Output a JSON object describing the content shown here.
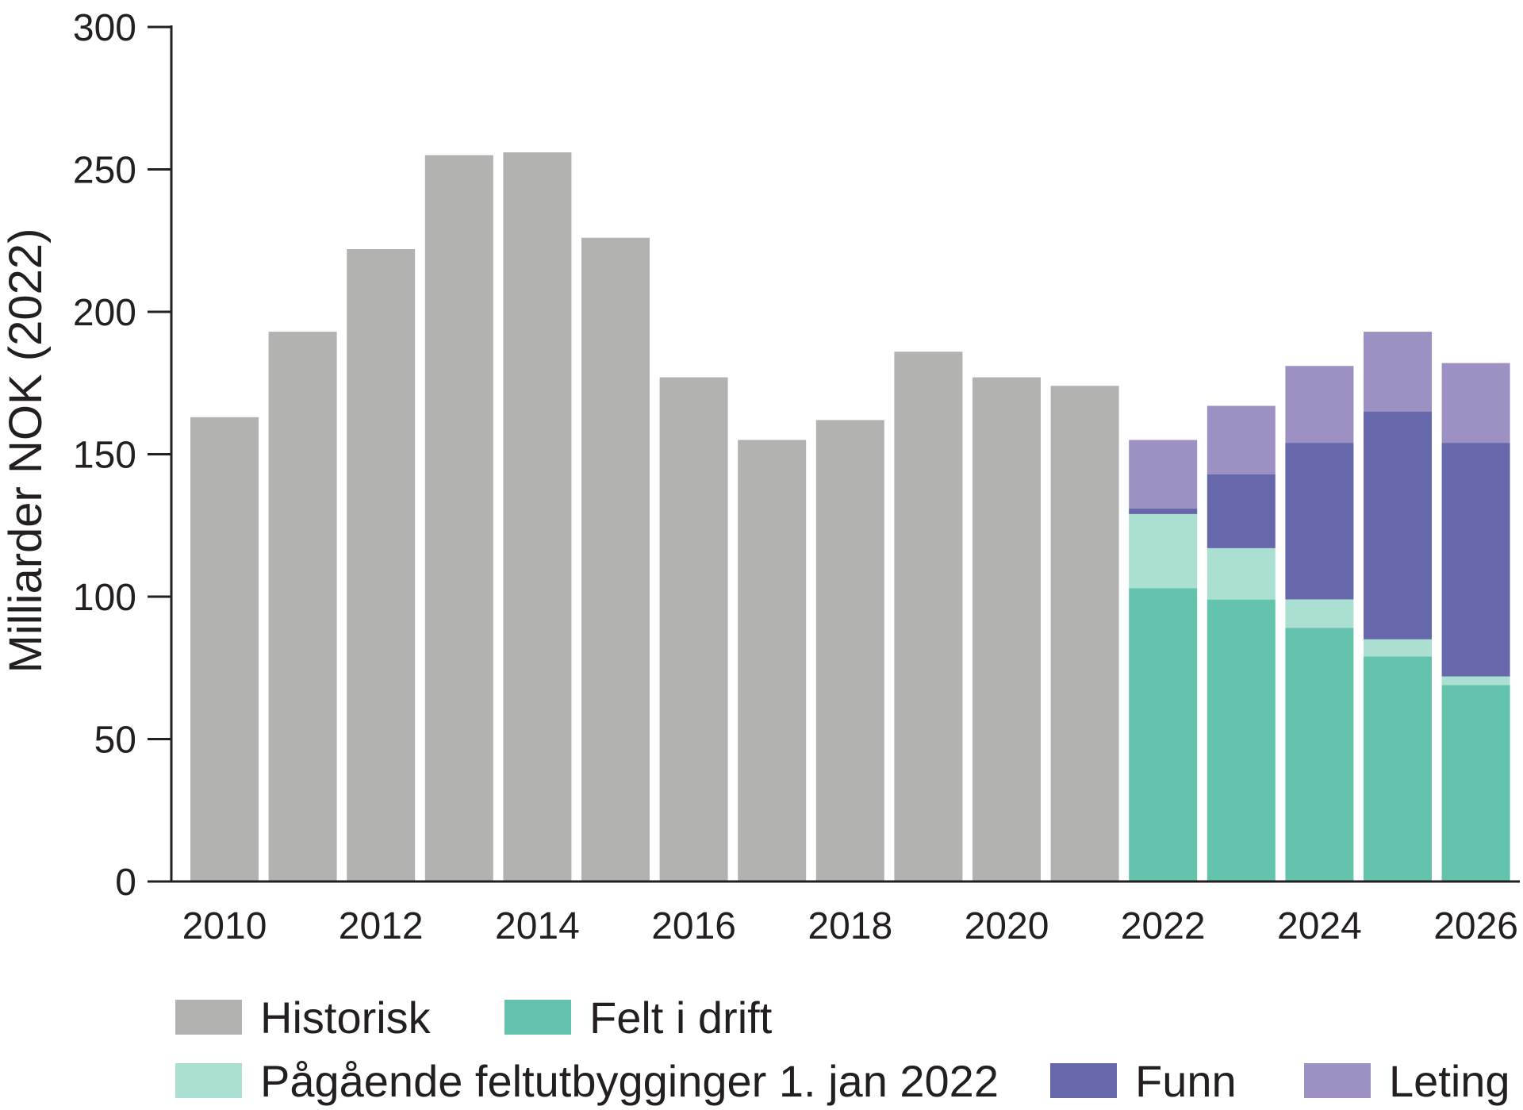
{
  "chart_data": {
    "type": "bar",
    "stacked": true,
    "ylabel": "Milliarder NOK (2022)",
    "xlabel": "",
    "ylim": [
      0,
      300
    ],
    "yticks": [
      0,
      50,
      100,
      150,
      200,
      250,
      300
    ],
    "x": [
      2010,
      2011,
      2012,
      2013,
      2014,
      2015,
      2016,
      2017,
      2018,
      2019,
      2020,
      2021,
      2022,
      2023,
      2024,
      2025,
      2026
    ],
    "xtick_labels": [
      "2010",
      "2012",
      "2014",
      "2016",
      "2018",
      "2020",
      "2022",
      "2024",
      "2026"
    ],
    "xtick_years": [
      2010,
      2012,
      2014,
      2016,
      2018,
      2020,
      2022,
      2024,
      2026
    ],
    "series": [
      {
        "name": "Historisk",
        "color": "#b2b2b1",
        "values": [
          163,
          193,
          222,
          255,
          256,
          226,
          177,
          155,
          162,
          186,
          177,
          174,
          0,
          0,
          0,
          0,
          0
        ]
      },
      {
        "name": "Felt i drift",
        "color": "#63c3ac",
        "values": [
          0,
          0,
          0,
          0,
          0,
          0,
          0,
          0,
          0,
          0,
          0,
          0,
          103,
          99,
          89,
          79,
          69
        ]
      },
      {
        "name": "Pågående feltutbygginger 1. jan 2022",
        "color": "#aadfd1",
        "values": [
          0,
          0,
          0,
          0,
          0,
          0,
          0,
          0,
          0,
          0,
          0,
          0,
          26,
          18,
          10,
          6,
          3
        ]
      },
      {
        "name": "Funn",
        "color": "#6767ab",
        "values": [
          0,
          0,
          0,
          0,
          0,
          0,
          0,
          0,
          0,
          0,
          0,
          0,
          2,
          26,
          55,
          80,
          82
        ]
      },
      {
        "name": "Leting",
        "color": "#9d91c3",
        "values": [
          0,
          0,
          0,
          0,
          0,
          0,
          0,
          0,
          0,
          0,
          0,
          0,
          24,
          24,
          27,
          28,
          28
        ]
      }
    ],
    "legend": {
      "placement": "bottom",
      "rows": [
        [
          "Historisk",
          "Felt i drift"
        ],
        [
          "Pågående feltutbygginger 1. jan 2022",
          "Funn",
          "Leting"
        ]
      ]
    },
    "grid": false
  }
}
